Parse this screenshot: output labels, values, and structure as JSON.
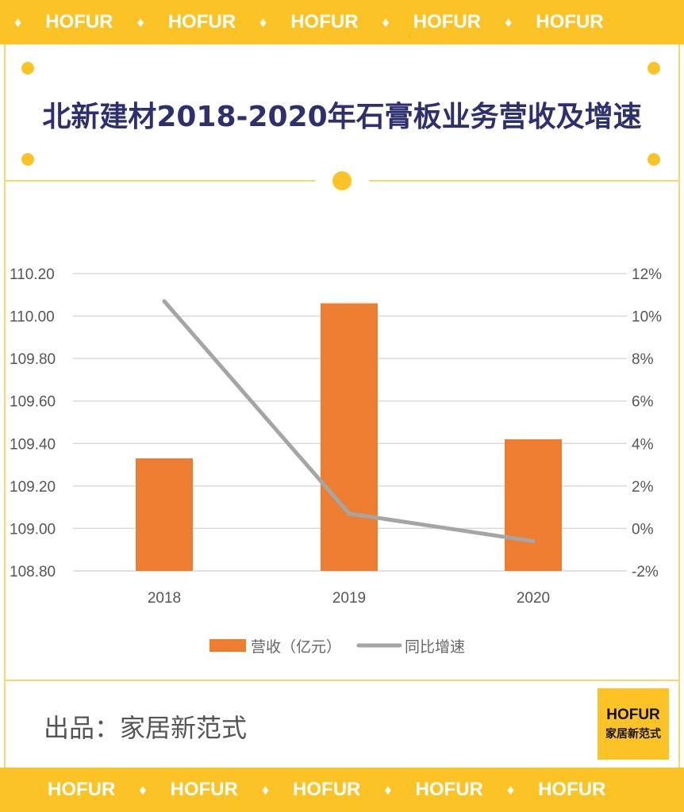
{
  "banner": {
    "brand": "HOFUR",
    "separator": "♦"
  },
  "title": "北新建材2018-2020年石膏板业务营收及增速",
  "footer": {
    "credit": "出品：家居新范式",
    "logo_brand": "HOFUR",
    "logo_name": "家居新范式"
  },
  "colors": {
    "banner": "#fbc325",
    "title": "#2e2f6e",
    "bar": "#ed7d31",
    "line": "#a5a5a5"
  },
  "chart_data": {
    "type": "bar+line",
    "categories": [
      "2018",
      "2019",
      "2020"
    ],
    "series": [
      {
        "name": "营收（亿元）",
        "type": "bar",
        "axis": "left",
        "values": [
          109.33,
          110.06,
          109.42
        ]
      },
      {
        "name": "同比增速",
        "type": "line",
        "axis": "right",
        "values": [
          10.7,
          0.7,
          -0.6
        ]
      }
    ],
    "y_left": {
      "range": [
        108.8,
        110.2
      ],
      "ticks": [
        "108.80",
        "109.00",
        "109.20",
        "109.40",
        "109.60",
        "109.80",
        "110.00",
        "110.20"
      ]
    },
    "y_right": {
      "range": [
        -2,
        12
      ],
      "unit": "%",
      "ticks": [
        "-2%",
        "0%",
        "2%",
        "4%",
        "6%",
        "8%",
        "10%",
        "12%"
      ]
    },
    "grid": true,
    "legend": "bottom"
  }
}
